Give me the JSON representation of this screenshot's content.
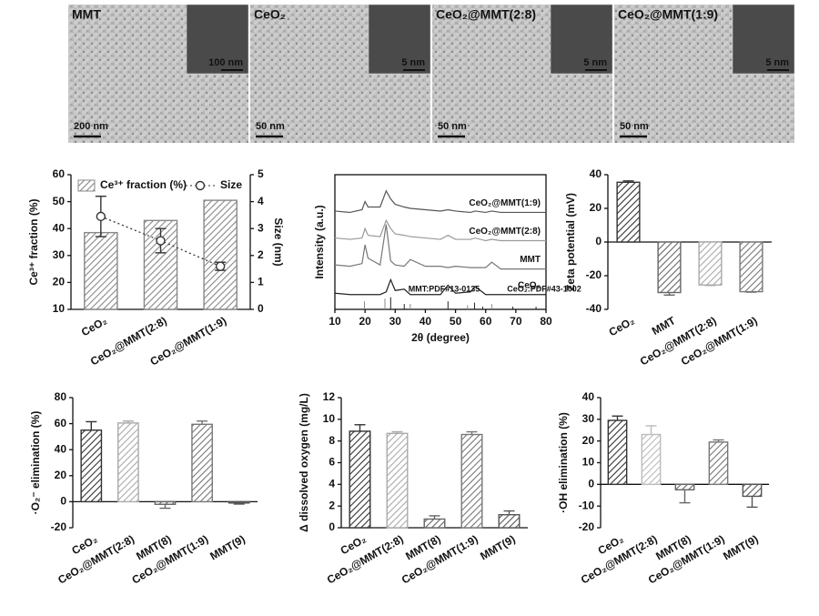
{
  "images": [
    {
      "label": "MMT",
      "inset_scale": "100 nm",
      "scale": "200 nm"
    },
    {
      "label": "CeO₂",
      "inset_scale": "5 nm",
      "scale": "50 nm"
    },
    {
      "label": "CeO₂@MMT(2:8)",
      "inset_scale": "5 nm",
      "scale": "50 nm"
    },
    {
      "label": "CeO₂@MMT(1:9)",
      "inset_scale": "5 nm",
      "scale": "50 nm"
    }
  ],
  "chart_data": [
    {
      "type": "bar",
      "y_label": "Ce³⁺ fraction (%)",
      "y2_label": "Size (nm)",
      "categories": [
        "CeO₂",
        "CeO₂@MMT(2:8)",
        "CeO₂@MMT(1:9)"
      ],
      "ylim": [
        10,
        60
      ],
      "yticks": [
        10,
        20,
        30,
        40,
        50,
        60
      ],
      "y2lim": [
        0,
        5
      ],
      "y2ticks": [
        0,
        1,
        2,
        3,
        4,
        5
      ],
      "legend": "top",
      "series": [
        {
          "name": "Ce³⁺ fraction (%)",
          "color": "#bbbbbb",
          "values": [
            38.5,
            43,
            50.5
          ]
        },
        {
          "name": "Size",
          "color": "#333333",
          "style": "line",
          "axis": "y2",
          "values": [
            3.45,
            2.55,
            1.6
          ],
          "errors": [
            0.75,
            0.45,
            0.15
          ]
        }
      ]
    },
    {
      "type": "line",
      "x_label": "2θ (degree)",
      "y_label": "Intensity (a.u.)",
      "xlim": [
        10,
        80
      ],
      "xticks": [
        10,
        20,
        30,
        40,
        50,
        60,
        70,
        80
      ],
      "ylim": [
        0,
        100
      ],
      "x": [
        10,
        15,
        19,
        20,
        21,
        25,
        27,
        28.5,
        30,
        33,
        35,
        40,
        45,
        47.5,
        50,
        55,
        56.5,
        60,
        62,
        65,
        70,
        75,
        80
      ],
      "series": [
        {
          "name": "CeO₂@MMT(1:9)",
          "color": "#555555",
          "values": [
            73,
            72,
            74,
            80,
            76,
            76,
            88,
            82,
            78,
            76,
            75,
            74,
            73,
            74,
            73,
            72,
            73,
            72,
            73,
            72,
            72,
            72,
            72
          ]
        },
        {
          "name": "CeO₂@MMT(2:8)",
          "color": "#999999",
          "values": [
            53,
            52,
            53,
            60,
            55,
            54,
            66,
            60,
            56,
            55,
            54,
            53,
            52,
            55,
            52,
            52,
            53,
            51,
            52,
            51,
            51,
            51,
            51
          ]
        },
        {
          "name": "MMT",
          "color": "#777777",
          "values": [
            33,
            32,
            34,
            48,
            38,
            33,
            63,
            36,
            33,
            32,
            37,
            32,
            32,
            31,
            32,
            31,
            31,
            31,
            35,
            30,
            30,
            30,
            30
          ]
        },
        {
          "name": "CeO₂",
          "color": "#222222",
          "values": [
            12,
            11,
            11,
            11,
            11,
            11,
            13,
            22,
            14,
            15,
            11,
            11,
            11,
            18,
            12,
            13,
            17,
            11,
            11,
            11,
            11,
            11,
            11
          ]
        }
      ],
      "references": [
        {
          "name": "MMT:PDF#13-0135",
          "color": "#888888",
          "x": [
            19.8,
            26.6,
            35,
            54,
            62
          ],
          "values": [
            6,
            8,
            4,
            3,
            4
          ]
        },
        {
          "name": "CeO₂:PDF#43-1002",
          "color": "#222222",
          "x": [
            28.5,
            33,
            47.5,
            56.3,
            59,
            69,
            76.7
          ],
          "values": [
            9,
            4,
            6,
            5,
            2,
            2,
            2
          ]
        }
      ]
    },
    {
      "type": "bar",
      "y_label": "Zeta potential (mV)",
      "categories": [
        "CeO₂",
        "MMT",
        "CeO₂@MMT(2:8)",
        "CeO₂@MMT(1:9)"
      ],
      "ylim": [
        -40,
        40
      ],
      "yticks": [
        -40,
        -20,
        0,
        20,
        40
      ],
      "values": [
        35.5,
        -30,
        -25.5,
        -29.5
      ],
      "errors": [
        0.8,
        1.5,
        0.3,
        0.3
      ],
      "colors": [
        "#333333",
        "#666666",
        "#aaaaaa",
        "#777777"
      ]
    },
    {
      "type": "bar",
      "y_label": "·O₂⁻ elimination (%)",
      "categories": [
        "CeO₂",
        "CeO₂@MMT(2:8)",
        "MMT(8)",
        "CeO₂@MMT(1:9)",
        "MMT(9)"
      ],
      "ylim": [
        -20,
        80
      ],
      "yticks": [
        -20,
        0,
        20,
        40,
        60,
        80
      ],
      "values": [
        55,
        60.5,
        -2,
        59.5,
        -1
      ],
      "errors": [
        6.5,
        1.5,
        3,
        2.5,
        0.8
      ],
      "colors": [
        "#333333",
        "#aaaaaa",
        "#666666",
        "#777777",
        "#555555"
      ]
    },
    {
      "type": "bar",
      "y_label": "Δ dissolved oxygen (mg/L)",
      "categories": [
        "CeO₂",
        "CeO₂@MMT(2:8)",
        "MMT(8)",
        "CeO₂@MMT(1:9)",
        "MMT(9)"
      ],
      "ylim": [
        0,
        12
      ],
      "yticks": [
        0,
        2,
        4,
        6,
        8,
        10,
        12
      ],
      "values": [
        8.9,
        8.7,
        0.8,
        8.6,
        1.2
      ],
      "errors": [
        0.6,
        0.15,
        0.3,
        0.25,
        0.35
      ],
      "colors": [
        "#333333",
        "#aaaaaa",
        "#666666",
        "#777777",
        "#555555"
      ]
    },
    {
      "type": "bar",
      "y_label": "·OH elimination (%)",
      "categories": [
        "CeO₂",
        "CeO₂@MMT(2:8)",
        "MMT(8)",
        "CeO₂@MMT(1:9)",
        "MMT(9)"
      ],
      "ylim": [
        -20,
        40
      ],
      "yticks": [
        -20,
        -10,
        0,
        10,
        20,
        30,
        40
      ],
      "values": [
        29.5,
        23,
        -2.5,
        19.5,
        -5.5
      ],
      "errors": [
        2,
        4,
        6,
        1,
        5
      ],
      "colors": [
        "#333333",
        "#bbbbbb",
        "#666666",
        "#777777",
        "#555555"
      ]
    }
  ]
}
